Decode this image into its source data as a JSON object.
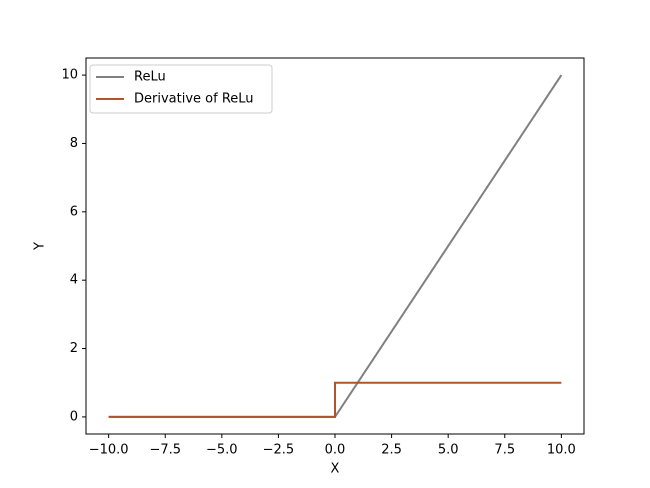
{
  "chart_data": {
    "type": "line",
    "x": [
      -10,
      0,
      0,
      10
    ],
    "series": [
      {
        "name": "ReLu",
        "color": "#808080",
        "values": [
          0,
          0,
          0,
          10
        ]
      },
      {
        "name": "Derivative of ReLu",
        "color": "#b0532f",
        "values": [
          0,
          0,
          1,
          1
        ]
      }
    ],
    "xlabel": "X",
    "ylabel": "Y",
    "xlim": [
      -11,
      11
    ],
    "ylim": [
      -0.5,
      10.5
    ],
    "xticks": [
      {
        "value": -10,
        "label": "−10.0"
      },
      {
        "value": -7.5,
        "label": "−7.5"
      },
      {
        "value": -5,
        "label": "−5.0"
      },
      {
        "value": -2.5,
        "label": "−2.5"
      },
      {
        "value": 0,
        "label": "0.0"
      },
      {
        "value": 2.5,
        "label": "2.5"
      },
      {
        "value": 5,
        "label": "5.0"
      },
      {
        "value": 7.5,
        "label": "7.5"
      },
      {
        "value": 10,
        "label": "10.0"
      }
    ],
    "yticks": [
      0,
      2,
      4,
      6,
      8,
      10
    ],
    "grid": false,
    "legend": "upper left"
  }
}
